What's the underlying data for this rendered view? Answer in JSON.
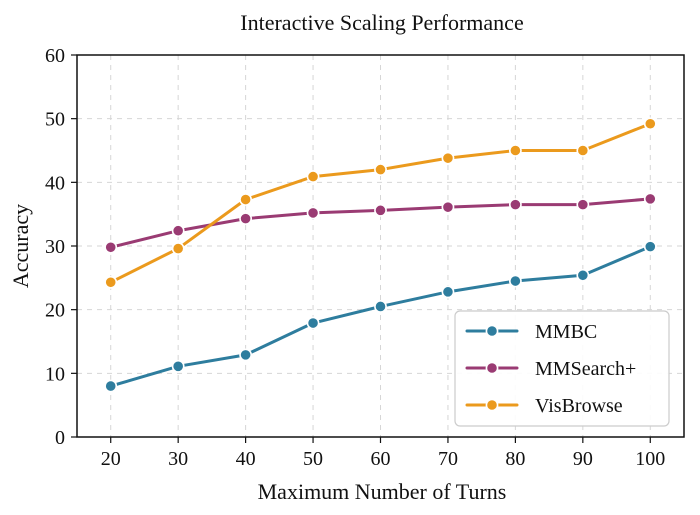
{
  "chart_data": {
    "type": "line",
    "title": "Interactive Scaling Performance",
    "xlabel": "Maximum Number of Turns",
    "ylabel": "Accuracy",
    "x": [
      20,
      30,
      40,
      50,
      60,
      70,
      80,
      90,
      100
    ],
    "xlim": [
      15,
      105
    ],
    "ylim": [
      0,
      60
    ],
    "xticks": [
      20,
      30,
      40,
      50,
      60,
      70,
      80,
      90,
      100
    ],
    "yticks": [
      0,
      10,
      20,
      30,
      40,
      50,
      60
    ],
    "grid": true,
    "legend_position": "lower-right",
    "series": [
      {
        "name": "MMBC",
        "color": "#2e7d9e",
        "values": [
          8.0,
          11.1,
          12.9,
          17.9,
          20.5,
          22.8,
          24.5,
          25.4,
          29.9
        ]
      },
      {
        "name": "MMSearch+",
        "color": "#9a3b73",
        "values": [
          29.8,
          32.4,
          34.3,
          35.2,
          35.6,
          36.1,
          36.5,
          36.5,
          37.4
        ]
      },
      {
        "name": "VisBrowse",
        "color": "#eb9a1d",
        "values": [
          24.3,
          29.6,
          37.3,
          40.9,
          42.0,
          43.8,
          45.0,
          45.0,
          49.2
        ]
      }
    ]
  }
}
